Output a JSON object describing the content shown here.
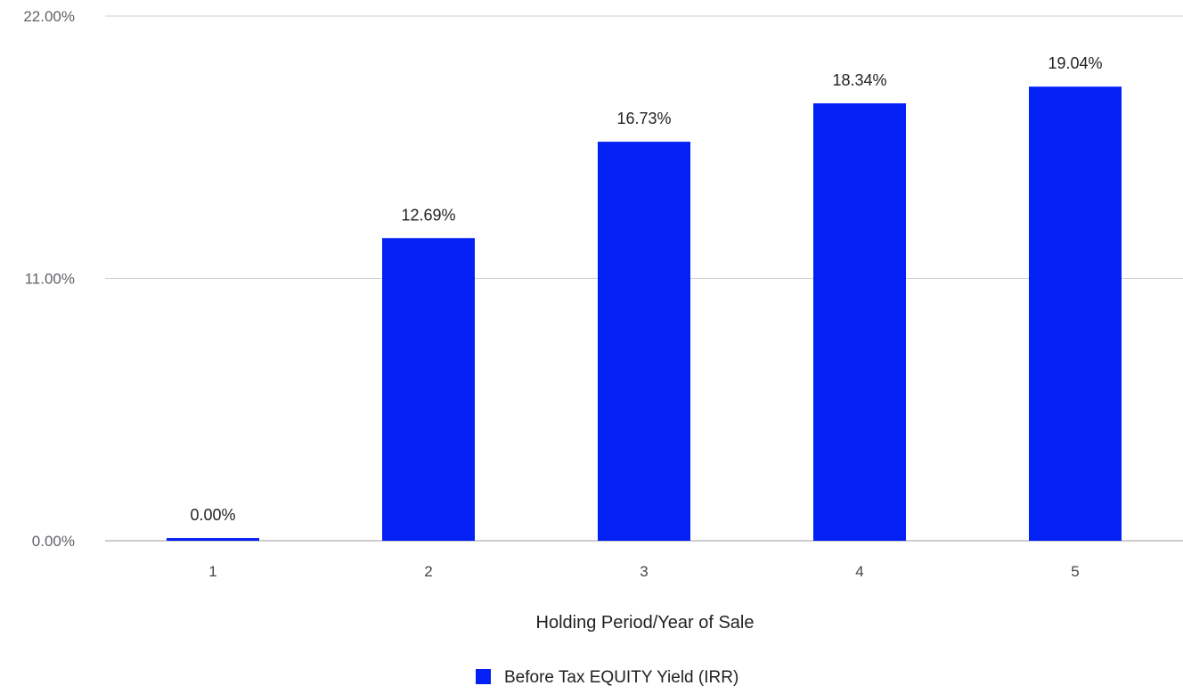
{
  "chart_data": {
    "type": "bar",
    "title": "",
    "xlabel": "Holding Period/Year of Sale",
    "ylabel": "",
    "categories": [
      "1",
      "2",
      "3",
      "4",
      "5"
    ],
    "series": [
      {
        "name": "Before Tax EQUITY Yield (IRR)",
        "values": [
          0.0,
          12.69,
          16.73,
          18.34,
          19.04
        ],
        "data_labels": [
          "0.00%",
          "12.69%",
          "16.73%",
          "18.34%",
          "19.04%"
        ],
        "color": "#0320f5"
      }
    ],
    "ylim": [
      0,
      22
    ],
    "yticks": [
      0,
      11,
      22
    ],
    "ytick_labels": [
      "0.00%",
      "11.00%",
      "22.00%"
    ],
    "grid": true,
    "legend_position": "bottom",
    "gridline_color": "#cccccc",
    "baseline_color": "#bdbdbd"
  }
}
